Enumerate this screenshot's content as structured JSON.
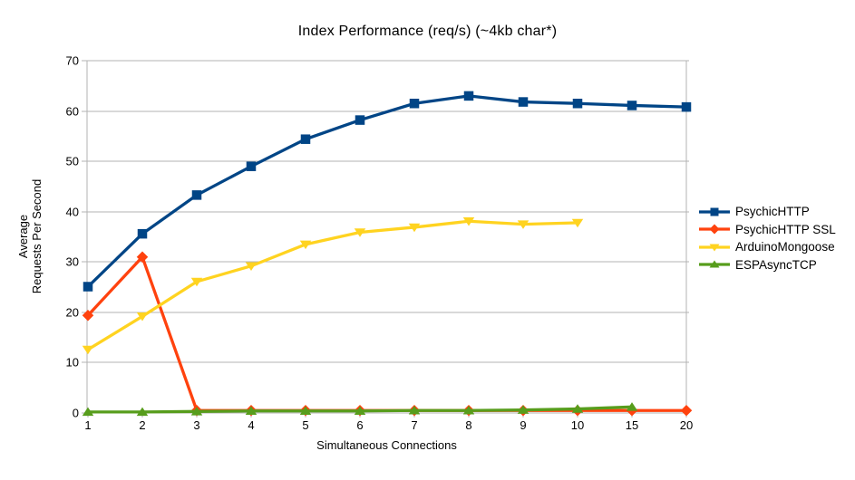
{
  "chart_data": {
    "type": "line",
    "title": "Index Performance (req/s) (~4kb char*)",
    "xlabel": "Simultaneous Connections",
    "ylabel_lines": [
      "Average",
      "Requests Per Second"
    ],
    "categories": [
      "1",
      "2",
      "3",
      "4",
      "5",
      "6",
      "7",
      "8",
      "9",
      "10",
      "15",
      "20"
    ],
    "ylim": [
      0,
      70
    ],
    "ytick_step": 10,
    "grid": "horizontal-only",
    "legend_position": "right",
    "axis_color": "#B3B3B3",
    "text_color": "#000000",
    "series": [
      {
        "name": "PsychicHTTP",
        "color": "#004586",
        "marker": "square",
        "values": [
          25.1,
          35.6,
          43.3,
          49.0,
          54.4,
          58.2,
          61.5,
          63.0,
          61.8,
          61.5,
          61.1,
          60.8
        ]
      },
      {
        "name": "PsychicHTTP SSL",
        "color": "#FF420E",
        "marker": "diamond",
        "values": [
          19.4,
          31.0,
          0.5,
          0.5,
          0.5,
          0.5,
          0.5,
          0.5,
          0.5,
          0.5,
          0.5,
          0.5
        ]
      },
      {
        "name": "ArduinoMongoose",
        "color": "#FFD320",
        "marker": "triangle-down",
        "values": [
          12.6,
          19.2,
          26.1,
          29.2,
          33.5,
          35.9,
          36.9,
          38.1,
          37.5,
          37.8,
          null,
          null
        ]
      },
      {
        "name": "ESPAsyncTCP",
        "color": "#579D1C",
        "marker": "triangle-up",
        "values": [
          0.2,
          0.2,
          0.3,
          0.4,
          0.4,
          0.4,
          0.5,
          0.5,
          0.6,
          0.8,
          1.2,
          null
        ]
      }
    ]
  }
}
